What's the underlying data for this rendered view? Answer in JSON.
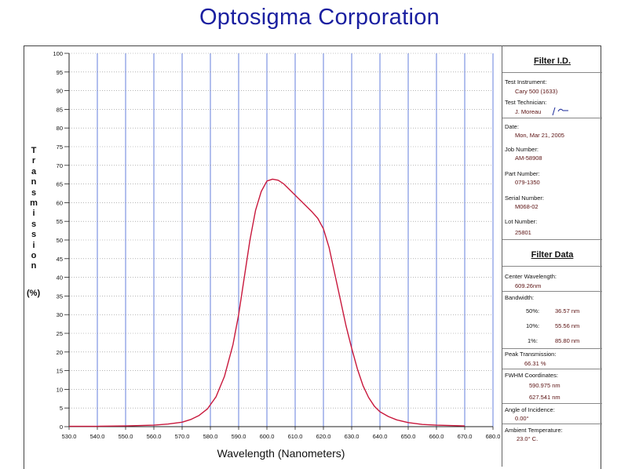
{
  "page_title": "Optosigma Corporation",
  "chart_data": {
    "type": "line",
    "xlabel": "Wavelength (Nanometers)",
    "ylabel_letters": [
      "T",
      "r",
      "a",
      "n",
      "s",
      "m",
      "i",
      "s",
      "s",
      "i",
      "o",
      "n"
    ],
    "ylabel_unit": "(%)",
    "xlim": [
      530,
      680
    ],
    "ylim": [
      0,
      100
    ],
    "x_ticks": [
      "530.0",
      "540.0",
      "550.0",
      "560.0",
      "570.0",
      "580.0",
      "590.0",
      "600.0",
      "610.0",
      "620.0",
      "630.0",
      "640.0",
      "650.0",
      "660.0",
      "670.0",
      "680.0"
    ],
    "y_ticks": [
      "0",
      "5",
      "10",
      "15",
      "20",
      "25",
      "30",
      "35",
      "40",
      "45",
      "50",
      "55",
      "60",
      "65",
      "70",
      "75",
      "80",
      "85",
      "90",
      "95",
      "100"
    ],
    "grid": true,
    "line_color": "#c8183c",
    "grid_color": "#3f5fd6",
    "series": [
      {
        "x": [
          530,
          540,
          550,
          560,
          565,
          570,
          573,
          576,
          579,
          582,
          585,
          588,
          590,
          592,
          594,
          596,
          598,
          600,
          602,
          604,
          606,
          608,
          610,
          612,
          614,
          616,
          618,
          620,
          622,
          624,
          626,
          628,
          630,
          632,
          634,
          636,
          638,
          640,
          643,
          646,
          650,
          655,
          660,
          665,
          670
        ],
        "y": [
          0.1,
          0.1,
          0.2,
          0.4,
          0.7,
          1.2,
          1.9,
          3.0,
          4.8,
          8.0,
          13.5,
          22.0,
          30.0,
          40.0,
          50.0,
          58.0,
          63.0,
          65.8,
          66.3,
          66.0,
          65.0,
          63.5,
          62.0,
          60.5,
          59.0,
          57.5,
          55.8,
          53.0,
          48.0,
          41.0,
          34.0,
          27.0,
          21.0,
          15.5,
          11.0,
          7.8,
          5.5,
          4.0,
          2.7,
          1.8,
          1.1,
          0.6,
          0.4,
          0.3,
          0.2
        ]
      }
    ]
  },
  "panel": {
    "filter_id_heading": "Filter I.D.",
    "test_instrument_label": "Test Instrument:",
    "test_instrument_value": "Cary 500 (1633)",
    "test_technician_label": "Test Technician:",
    "test_technician_value": "J. Moreau",
    "date_label": "Date:",
    "date_value": "Mon, Mar 21, 2005",
    "job_number_label": "Job Number:",
    "job_number_value": "AM-58908",
    "part_number_label": "Part Number:",
    "part_number_value": "079-1350",
    "serial_number_label": "Serial Number:",
    "serial_number_value": "M068-02",
    "lot_number_label": "Lot Number:",
    "lot_number_value": "25801",
    "filter_data_heading": "Filter Data",
    "center_wavelength_label": "Center Wavelength:",
    "center_wavelength_value": "609.26nm",
    "bandwidth_label": "Bandwidth:",
    "bw50_label": "50%:",
    "bw50_value": "36.57 nm",
    "bw10_label": "10%:",
    "bw10_value": "55.56 nm",
    "bw1_label": "1%:",
    "bw1_value": "85.80 nm",
    "peak_transmission_label": "Peak Transmission:",
    "peak_transmission_value": "66.31 %",
    "fwhm_label": "FWHM Coordinates:",
    "fwhm_value_1": "590.975 nm",
    "fwhm_value_2": "627.541 nm",
    "angle_label": "Angle of Incidence:",
    "angle_value": "0.00°",
    "ambient_label": "Ambient Temperature:",
    "ambient_value": "23.0° C."
  }
}
